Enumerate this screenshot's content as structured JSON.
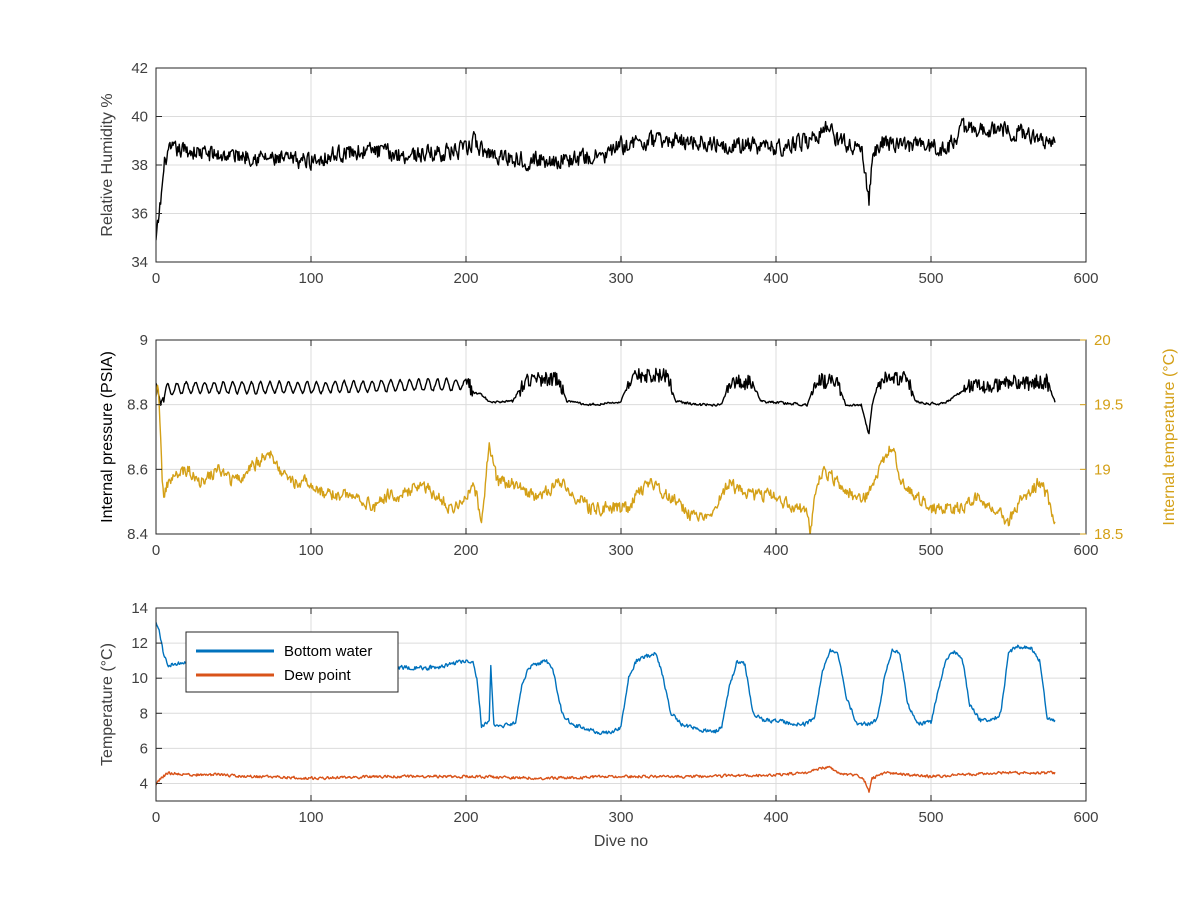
{
  "chart_data": [
    {
      "type": "line",
      "ylabel": "Relative Humidity %",
      "xlabel": "",
      "xlim": [
        0,
        600
      ],
      "ylim": [
        34,
        42
      ],
      "xticks": [
        0,
        100,
        200,
        300,
        400,
        500,
        600
      ],
      "yticks": [
        34,
        36,
        38,
        40,
        42
      ],
      "grid": true,
      "series": [
        {
          "color": "#000000",
          "noise": 0.35,
          "x": [
            0,
            3,
            6,
            10,
            20,
            40,
            60,
            80,
            100,
            120,
            140,
            160,
            180,
            200,
            205,
            210,
            220,
            240,
            260,
            280,
            290,
            300,
            320,
            340,
            360,
            380,
            400,
            420,
            430,
            435,
            440,
            450,
            455,
            458,
            460,
            462,
            470,
            480,
            500,
            510,
            515,
            520,
            540,
            560,
            570,
            580
          ],
          "y": [
            34.8,
            36.5,
            38.3,
            38.6,
            38.6,
            38.4,
            38.4,
            38.2,
            38.2,
            38.5,
            38.6,
            38.4,
            38.5,
            38.6,
            39.0,
            38.6,
            38.4,
            38.2,
            38.2,
            38.3,
            38.4,
            38.8,
            39.0,
            39.0,
            38.9,
            38.8,
            38.7,
            39.0,
            39.4,
            39.6,
            39.0,
            38.8,
            38.6,
            37.5,
            36.3,
            38.4,
            39.0,
            38.8,
            38.8,
            38.6,
            39.1,
            39.5,
            39.5,
            39.3,
            39.1,
            39.0
          ]
        }
      ]
    },
    {
      "type": "line",
      "ylabel": "Internal pressure (PSIA)",
      "ylabel_right": "Internal temperature (°C)",
      "xlim": [
        0,
        600
      ],
      "ylim": [
        8.4,
        9.0
      ],
      "ylim_right": [
        18.5,
        20.0
      ],
      "xticks": [
        0,
        100,
        200,
        300,
        400,
        500,
        600
      ],
      "yticks": [
        8.4,
        8.6,
        8.8,
        9.0
      ],
      "yticks_right": [
        18.5,
        19.0,
        19.5,
        20.0
      ],
      "grid": true,
      "series": [
        {
          "axis": "left",
          "color": "#000000",
          "noise": 0.004,
          "osc": {
            "ranges": [
              [
                5,
                200
              ]
            ],
            "period": 6,
            "amp": 0.035
          },
          "x": [
            0,
            3,
            6,
            20,
            100,
            200,
            205,
            210,
            215,
            230,
            235,
            240,
            260,
            265,
            280,
            300,
            305,
            310,
            330,
            335,
            350,
            365,
            370,
            385,
            390,
            420,
            425,
            440,
            445,
            455,
            458,
            460,
            462,
            465,
            470,
            485,
            490,
            505,
            510,
            520,
            525,
            545,
            550,
            575,
            580
          ],
          "y": [
            8.87,
            8.8,
            8.85,
            8.86,
            8.86,
            8.87,
            8.84,
            8.83,
            8.81,
            8.81,
            8.85,
            8.88,
            8.88,
            8.81,
            8.8,
            8.81,
            8.87,
            8.89,
            8.89,
            8.81,
            8.8,
            8.8,
            8.87,
            8.87,
            8.81,
            8.8,
            8.87,
            8.87,
            8.8,
            8.8,
            8.74,
            8.71,
            8.8,
            8.85,
            8.88,
            8.88,
            8.81,
            8.8,
            8.81,
            8.84,
            8.86,
            8.86,
            8.87,
            8.87,
            8.81
          ]
        },
        {
          "axis": "right",
          "color": "#D4A017",
          "noise": 0.05,
          "x": [
            0,
            1,
            2,
            3,
            4,
            5,
            8,
            20,
            30,
            40,
            50,
            60,
            70,
            75,
            80,
            90,
            100,
            110,
            120,
            130,
            140,
            150,
            160,
            170,
            180,
            190,
            200,
            205,
            210,
            215,
            220,
            230,
            240,
            250,
            260,
            270,
            280,
            290,
            300,
            305,
            310,
            320,
            330,
            340,
            350,
            360,
            370,
            380,
            390,
            400,
            410,
            420,
            422,
            425,
            430,
            440,
            450,
            460,
            470,
            475,
            480,
            490,
            500,
            510,
            520,
            530,
            540,
            550,
            560,
            570,
            575,
            580
          ],
          "y": [
            19.6,
            19.7,
            19.5,
            19.3,
            18.9,
            18.8,
            18.9,
            19.0,
            18.9,
            19.0,
            18.9,
            19.0,
            19.1,
            19.1,
            19.0,
            18.9,
            18.9,
            18.8,
            18.8,
            18.8,
            18.7,
            18.8,
            18.8,
            18.9,
            18.8,
            18.7,
            18.8,
            18.9,
            18.6,
            19.2,
            18.9,
            18.9,
            18.8,
            18.8,
            18.9,
            18.8,
            18.7,
            18.7,
            18.7,
            18.7,
            18.8,
            18.9,
            18.8,
            18.7,
            18.6,
            18.7,
            18.9,
            18.8,
            18.8,
            18.8,
            18.7,
            18.7,
            18.5,
            18.8,
            19.0,
            18.9,
            18.8,
            18.8,
            19.1,
            19.2,
            18.9,
            18.8,
            18.7,
            18.7,
            18.7,
            18.8,
            18.7,
            18.6,
            18.8,
            18.9,
            18.8,
            18.6
          ]
        }
      ]
    },
    {
      "type": "line",
      "ylabel": "Temperature (°C)",
      "xlabel": "Dive no",
      "xlim": [
        0,
        600
      ],
      "ylim": [
        3,
        14
      ],
      "xticks": [
        0,
        100,
        200,
        300,
        400,
        500,
        600
      ],
      "yticks": [
        4,
        6,
        8,
        10,
        12,
        14
      ],
      "grid": true,
      "legend_position": "top-left",
      "series": [
        {
          "name": "Bottom water",
          "color": "#0072BD",
          "noise": 0.12,
          "x": [
            0,
            2,
            5,
            8,
            30,
            60,
            100,
            150,
            180,
            190,
            200,
            205,
            207,
            210,
            215,
            216,
            218,
            225,
            232,
            236,
            240,
            245,
            252,
            256,
            262,
            268,
            275,
            285,
            295,
            300,
            305,
            310,
            315,
            322,
            326,
            332,
            340,
            350,
            360,
            365,
            370,
            375,
            380,
            385,
            392,
            400,
            410,
            420,
            425,
            430,
            435,
            440,
            445,
            452,
            460,
            465,
            470,
            475,
            480,
            485,
            492,
            500,
            505,
            510,
            515,
            520,
            525,
            532,
            540,
            545,
            550,
            555,
            565,
            570,
            575,
            580
          ],
          "y": [
            13.2,
            12.8,
            11.2,
            10.8,
            10.9,
            10.8,
            10.7,
            10.6,
            10.6,
            10.8,
            11.0,
            10.8,
            10.0,
            7.3,
            7.5,
            10.6,
            7.4,
            7.3,
            7.4,
            9.5,
            10.5,
            10.8,
            11.0,
            10.5,
            8.0,
            7.4,
            7.2,
            6.9,
            6.9,
            7.2,
            10.0,
            11.0,
            11.2,
            11.4,
            10.5,
            8.0,
            7.3,
            7.1,
            6.9,
            7.2,
            9.5,
            11.0,
            10.8,
            8.0,
            7.6,
            7.6,
            7.4,
            7.4,
            7.8,
            10.5,
            11.6,
            11.4,
            9.0,
            7.4,
            7.4,
            7.6,
            10.0,
            11.6,
            11.4,
            8.5,
            7.4,
            7.5,
            9.5,
            11.2,
            11.5,
            11.2,
            8.5,
            7.6,
            7.6,
            8.0,
            11.4,
            11.8,
            11.7,
            11.0,
            7.8,
            7.5
          ]
        },
        {
          "name": "Dew point",
          "color": "#D95319",
          "noise": 0.08,
          "x": [
            0,
            3,
            8,
            20,
            40,
            60,
            100,
            150,
            200,
            250,
            300,
            350,
            400,
            420,
            430,
            435,
            440,
            455,
            458,
            460,
            462,
            470,
            500,
            520,
            540,
            560,
            580
          ],
          "y": [
            3.9,
            4.3,
            4.6,
            4.5,
            4.5,
            4.4,
            4.3,
            4.4,
            4.4,
            4.3,
            4.4,
            4.4,
            4.5,
            4.6,
            4.9,
            4.9,
            4.6,
            4.4,
            4.0,
            3.5,
            4.3,
            4.6,
            4.4,
            4.5,
            4.6,
            4.6,
            4.6
          ]
        }
      ]
    }
  ]
}
